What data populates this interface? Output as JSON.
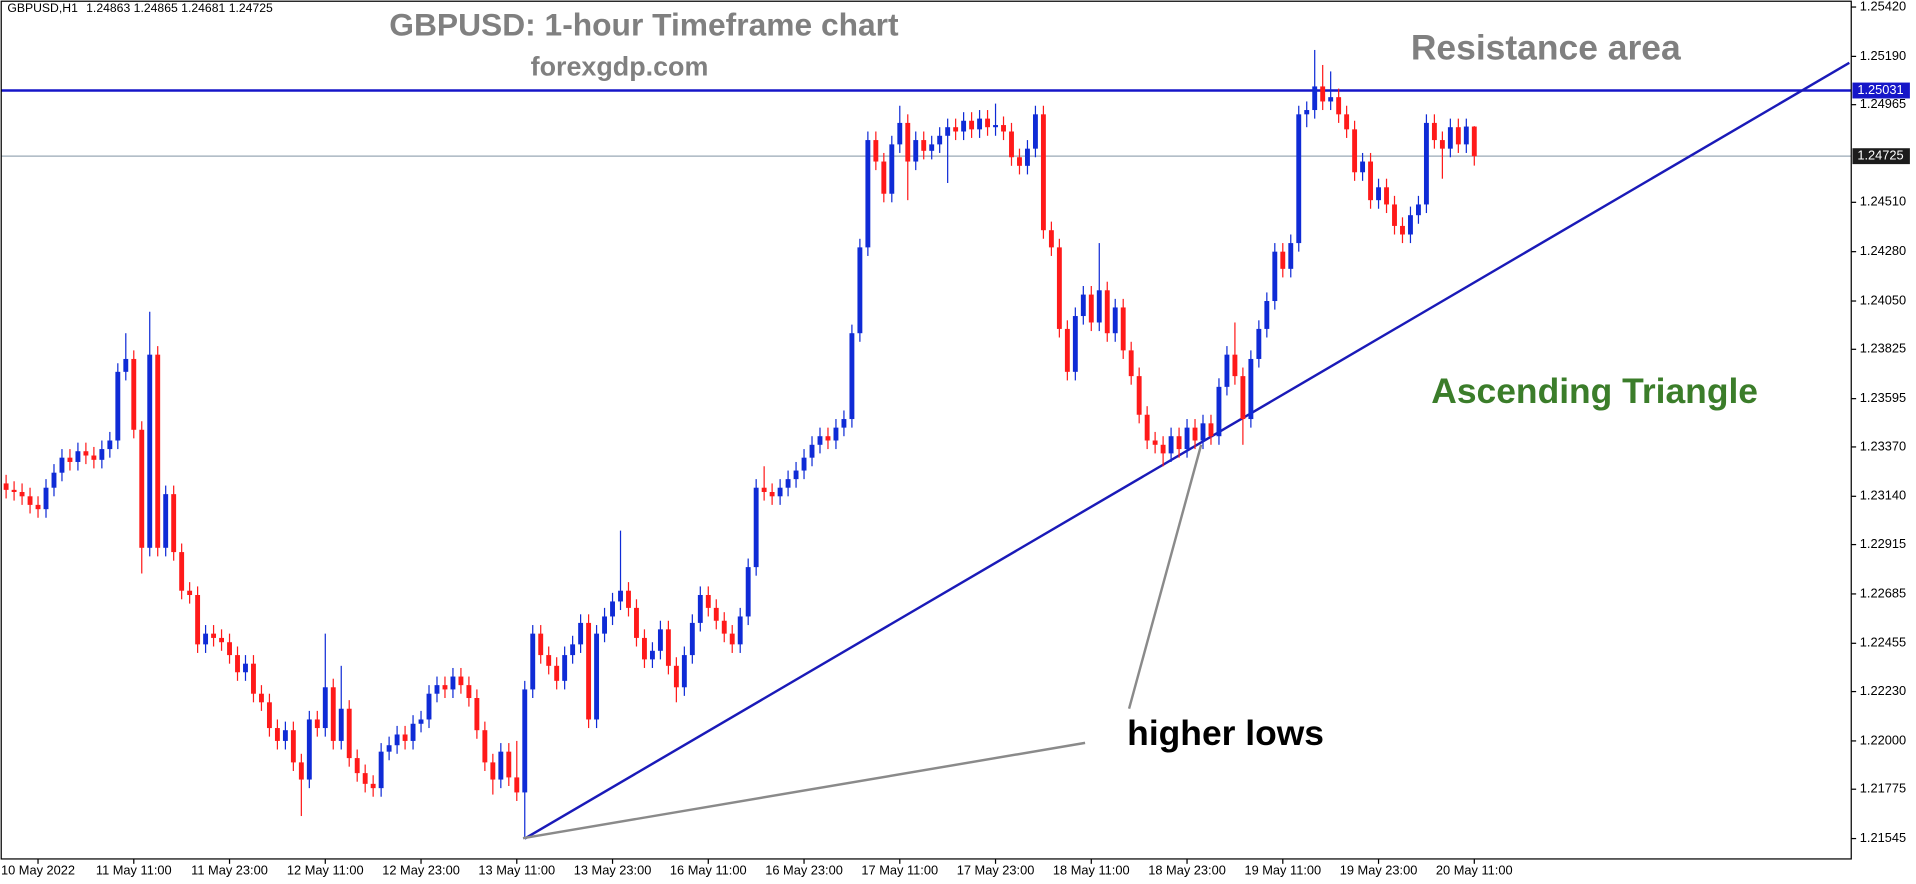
{
  "chart_data": {
    "type": "candlestick",
    "symbol": "GBPUSD,H1",
    "title": "GBPUSD: 1-hour Timeframe chart",
    "subtitle": "forexgdp.com",
    "annotations": [
      "Resistance area",
      "Ascending Triangle",
      "higher lows"
    ],
    "up_color": "#0f2bd6",
    "down_color": "#ff1a1a",
    "categories": [
      null,
      null,
      null,
      null,
      "10 May 2022",
      null,
      null,
      null,
      null,
      null,
      null,
      null,
      null,
      null,
      null,
      null,
      "11 May 11:00",
      null,
      null,
      null,
      null,
      null,
      null,
      null,
      null,
      null,
      null,
      null,
      "11 May 23:00",
      null,
      null,
      null,
      null,
      null,
      null,
      null,
      null,
      null,
      null,
      null,
      "12 May 11:00",
      null,
      null,
      null,
      null,
      null,
      null,
      null,
      null,
      null,
      null,
      null,
      "12 May 23:00",
      null,
      null,
      null,
      null,
      null,
      null,
      null,
      null,
      null,
      null,
      null,
      "13 May 11:00",
      null,
      null,
      null,
      null,
      null,
      null,
      null,
      null,
      null,
      null,
      null,
      "13 May 23:00",
      null,
      null,
      null,
      null,
      null,
      null,
      null,
      null,
      null,
      null,
      null,
      "16 May 11:00",
      null,
      null,
      null,
      null,
      null,
      null,
      null,
      null,
      null,
      null,
      null,
      "16 May 23:00",
      null,
      null,
      null,
      null,
      null,
      null,
      null,
      null,
      null,
      null,
      null,
      "17 May 11:00",
      null,
      null,
      null,
      null,
      null,
      null,
      null,
      null,
      null,
      null,
      null,
      "17 May 23:00",
      null,
      null,
      null,
      null,
      null,
      null,
      null,
      null,
      null,
      null,
      null,
      "18 May 11:00",
      null,
      null,
      null,
      null,
      null,
      null,
      null,
      null,
      null,
      null,
      null,
      "18 May 23:00",
      null,
      null,
      null,
      null,
      null,
      null,
      null,
      null,
      null,
      null,
      null,
      "19 May 11:00",
      null,
      null,
      null,
      null,
      null,
      null,
      null,
      null,
      null,
      null,
      null,
      "19 May 23:00",
      null,
      null,
      null,
      null,
      null,
      null,
      null,
      null,
      null,
      null,
      null,
      "20 May 11:00"
    ],
    "ohlc": [
      [
        1.232,
        1.2324,
        1.2313,
        1.2317
      ],
      [
        1.2317,
        1.2321,
        1.2312,
        1.2316
      ],
      [
        1.2316,
        1.232,
        1.231,
        1.2314
      ],
      [
        1.2314,
        1.2318,
        1.2306,
        1.231
      ],
      [
        1.231,
        1.2314,
        1.2304,
        1.2308
      ],
      [
        1.2308,
        1.2322,
        1.2304,
        1.2318
      ],
      [
        1.2318,
        1.2329,
        1.2314,
        1.2325
      ],
      [
        1.2325,
        1.2336,
        1.2321,
        1.2332
      ],
      [
        1.2332,
        1.2336,
        1.2326,
        1.233
      ],
      [
        1.233,
        1.2339,
        1.2326,
        1.2335
      ],
      [
        1.2335,
        1.2339,
        1.2329,
        1.2333
      ],
      [
        1.2333,
        1.2337,
        1.2327,
        1.2331
      ],
      [
        1.2331,
        1.234,
        1.2327,
        1.2336
      ],
      [
        1.2336,
        1.2344,
        1.2332,
        1.234
      ],
      [
        1.234,
        1.2376,
        1.2336,
        1.2372
      ],
      [
        1.2372,
        1.239,
        1.2368,
        1.2378
      ],
      [
        1.2378,
        1.2382,
        1.2341,
        1.2345
      ],
      [
        1.2345,
        1.2349,
        1.2278,
        1.229
      ],
      [
        1.229,
        1.24,
        1.2286,
        1.238
      ],
      [
        1.238,
        1.2384,
        1.2286,
        1.229
      ],
      [
        1.229,
        1.2319,
        1.2286,
        1.2315
      ],
      [
        1.2315,
        1.2319,
        1.2284,
        1.2288
      ],
      [
        1.2288,
        1.2292,
        1.2266,
        1.227
      ],
      [
        1.227,
        1.2274,
        1.2264,
        1.2268
      ],
      [
        1.2268,
        1.2272,
        1.2241,
        1.2245
      ],
      [
        1.2245,
        1.2254,
        1.2241,
        1.225
      ],
      [
        1.225,
        1.2254,
        1.2244,
        1.2248
      ],
      [
        1.2248,
        1.2252,
        1.2242,
        1.2246
      ],
      [
        1.2246,
        1.225,
        1.2236,
        1.224
      ],
      [
        1.224,
        1.2244,
        1.2228,
        1.2232
      ],
      [
        1.2232,
        1.224,
        1.2228,
        1.2236
      ],
      [
        1.2236,
        1.224,
        1.2218,
        1.2222
      ],
      [
        1.2222,
        1.2226,
        1.2214,
        1.2218
      ],
      [
        1.2218,
        1.2222,
        1.2202,
        1.2206
      ],
      [
        1.2206,
        1.221,
        1.2196,
        1.22
      ],
      [
        1.22,
        1.2209,
        1.2196,
        1.2205
      ],
      [
        1.2205,
        1.2209,
        1.2186,
        1.219
      ],
      [
        1.219,
        1.2194,
        1.2165,
        1.2182
      ],
      [
        1.2182,
        1.2214,
        1.2178,
        1.221
      ],
      [
        1.221,
        1.2214,
        1.2202,
        1.2206
      ],
      [
        1.2206,
        1.225,
        1.2202,
        1.2225
      ],
      [
        1.2225,
        1.2229,
        1.2196,
        1.22
      ],
      [
        1.22,
        1.2235,
        1.2196,
        1.2215
      ],
      [
        1.2215,
        1.2219,
        1.2188,
        1.2192
      ],
      [
        1.2192,
        1.2196,
        1.2181,
        1.2185
      ],
      [
        1.2185,
        1.2189,
        1.2176,
        1.218
      ],
      [
        1.218,
        1.2184,
        1.2174,
        1.2178
      ],
      [
        1.2178,
        1.2199,
        1.2174,
        1.2195
      ],
      [
        1.2195,
        1.2202,
        1.2191,
        1.2198
      ],
      [
        1.2198,
        1.2207,
        1.2194,
        1.2203
      ],
      [
        1.2203,
        1.2207,
        1.2196,
        1.22
      ],
      [
        1.22,
        1.2212,
        1.2196,
        1.2208
      ],
      [
        1.2208,
        1.2214,
        1.2204,
        1.221
      ],
      [
        1.221,
        1.2226,
        1.2206,
        1.2222
      ],
      [
        1.2222,
        1.223,
        1.2218,
        1.2226
      ],
      [
        1.2226,
        1.223,
        1.222,
        1.2224
      ],
      [
        1.2224,
        1.2234,
        1.222,
        1.223
      ],
      [
        1.223,
        1.2234,
        1.2222,
        1.2226
      ],
      [
        1.2226,
        1.223,
        1.2216,
        1.222
      ],
      [
        1.222,
        1.2224,
        1.2201,
        1.2205
      ],
      [
        1.2205,
        1.2209,
        1.2186,
        1.219
      ],
      [
        1.219,
        1.2194,
        1.2175,
        1.2182
      ],
      [
        1.2182,
        1.2199,
        1.2178,
        1.2195
      ],
      [
        1.2195,
        1.2199,
        1.2179,
        1.2183
      ],
      [
        1.2183,
        1.22,
        1.2172,
        1.2176
      ],
      [
        1.2176,
        1.2228,
        1.21545,
        1.2224
      ],
      [
        1.2224,
        1.2254,
        1.222,
        1.225
      ],
      [
        1.225,
        1.2254,
        1.2236,
        1.224
      ],
      [
        1.224,
        1.2244,
        1.2231,
        1.2235
      ],
      [
        1.2235,
        1.2239,
        1.2224,
        1.2228
      ],
      [
        1.2228,
        1.2244,
        1.2224,
        1.224
      ],
      [
        1.224,
        1.2249,
        1.2236,
        1.2245
      ],
      [
        1.2245,
        1.2259,
        1.2241,
        1.2255
      ],
      [
        1.2255,
        1.2259,
        1.2206,
        1.221
      ],
      [
        1.221,
        1.2254,
        1.2206,
        1.225
      ],
      [
        1.225,
        1.2262,
        1.2246,
        1.2258
      ],
      [
        1.2258,
        1.2269,
        1.2254,
        1.2265
      ],
      [
        1.2265,
        1.2298,
        1.2261,
        1.227
      ],
      [
        1.227,
        1.2274,
        1.2258,
        1.2262
      ],
      [
        1.2262,
        1.2266,
        1.2244,
        1.2248
      ],
      [
        1.2248,
        1.2252,
        1.2234,
        1.2238
      ],
      [
        1.2238,
        1.2246,
        1.2234,
        1.2242
      ],
      [
        1.2242,
        1.2256,
        1.2238,
        1.2252
      ],
      [
        1.2252,
        1.2256,
        1.2231,
        1.2235
      ],
      [
        1.2235,
        1.2239,
        1.2218,
        1.2225
      ],
      [
        1.2225,
        1.2244,
        1.2221,
        1.224
      ],
      [
        1.224,
        1.2259,
        1.2236,
        1.2255
      ],
      [
        1.2255,
        1.2272,
        1.2251,
        1.2268
      ],
      [
        1.2268,
        1.2272,
        1.2258,
        1.2262
      ],
      [
        1.2262,
        1.2266,
        1.2252,
        1.2256
      ],
      [
        1.2256,
        1.226,
        1.2246,
        1.225
      ],
      [
        1.225,
        1.2254,
        1.2241,
        1.2245
      ],
      [
        1.2245,
        1.2262,
        1.2241,
        1.2258
      ],
      [
        1.2258,
        1.2285,
        1.2254,
        1.2281
      ],
      [
        1.2281,
        1.2322,
        1.2277,
        1.2318
      ],
      [
        1.2318,
        1.2328,
        1.2312,
        1.2316
      ],
      [
        1.2316,
        1.232,
        1.231,
        1.2314
      ],
      [
        1.2314,
        1.2322,
        1.231,
        1.2318
      ],
      [
        1.2318,
        1.2326,
        1.2314,
        1.2322
      ],
      [
        1.2322,
        1.233,
        1.2318,
        1.2326
      ],
      [
        1.2326,
        1.2336,
        1.2322,
        1.2332
      ],
      [
        1.2332,
        1.2342,
        1.2328,
        1.2338
      ],
      [
        1.2338,
        1.2346,
        1.2334,
        1.2342
      ],
      [
        1.2342,
        1.2346,
        1.2336,
        1.234
      ],
      [
        1.234,
        1.235,
        1.2336,
        1.2346
      ],
      [
        1.2346,
        1.2354,
        1.2342,
        1.235
      ],
      [
        1.235,
        1.2394,
        1.2346,
        1.239
      ],
      [
        1.239,
        1.2434,
        1.2386,
        1.243
      ],
      [
        1.243,
        1.2484,
        1.2426,
        1.248
      ],
      [
        1.248,
        1.2484,
        1.2466,
        1.247
      ],
      [
        1.247,
        1.2474,
        1.2451,
        1.2455
      ],
      [
        1.2455,
        1.2482,
        1.2451,
        1.2478
      ],
      [
        1.2478,
        1.2496,
        1.2474,
        1.2488
      ],
      [
        1.2488,
        1.2492,
        1.2452,
        1.247
      ],
      [
        1.247,
        1.2484,
        1.2466,
        1.248
      ],
      [
        1.248,
        1.2484,
        1.2471,
        1.2475
      ],
      [
        1.2475,
        1.2482,
        1.2471,
        1.2478
      ],
      [
        1.2478,
        1.2486,
        1.2474,
        1.2482
      ],
      [
        1.2482,
        1.249,
        1.246,
        1.2486
      ],
      [
        1.2486,
        1.249,
        1.248,
        1.2484
      ],
      [
        1.2484,
        1.2493,
        1.248,
        1.2489
      ],
      [
        1.2489,
        1.2493,
        1.2481,
        1.2485
      ],
      [
        1.2485,
        1.2494,
        1.2481,
        1.249
      ],
      [
        1.249,
        1.2494,
        1.2482,
        1.2486
      ],
      [
        1.2486,
        1.2497,
        1.2482,
        1.2487
      ],
      [
        1.2487,
        1.2491,
        1.248,
        1.2484
      ],
      [
        1.2484,
        1.2488,
        1.2468,
        1.2472
      ],
      [
        1.2472,
        1.2476,
        1.2464,
        1.2468
      ],
      [
        1.2468,
        1.248,
        1.2464,
        1.2476
      ],
      [
        1.2476,
        1.2496,
        1.2472,
        1.2492
      ],
      [
        1.2492,
        1.2496,
        1.2434,
        1.2438
      ],
      [
        1.2438,
        1.2442,
        1.2426,
        1.243
      ],
      [
        1.243,
        1.2434,
        1.2388,
        1.2392
      ],
      [
        1.2392,
        1.2396,
        1.2368,
        1.2372
      ],
      [
        1.2372,
        1.2402,
        1.2368,
        1.2398
      ],
      [
        1.2398,
        1.2412,
        1.2394,
        1.2408
      ],
      [
        1.2408,
        1.2412,
        1.2391,
        1.2395
      ],
      [
        1.2395,
        1.2432,
        1.2391,
        1.241
      ],
      [
        1.241,
        1.2414,
        1.2386,
        1.239
      ],
      [
        1.239,
        1.2406,
        1.2386,
        1.2402
      ],
      [
        1.2402,
        1.2406,
        1.2378,
        1.2382
      ],
      [
        1.2382,
        1.2386,
        1.2366,
        1.237
      ],
      [
        1.237,
        1.2374,
        1.2348,
        1.2352
      ],
      [
        1.2352,
        1.2356,
        1.2336,
        1.234
      ],
      [
        1.234,
        1.2344,
        1.2334,
        1.2338
      ],
      [
        1.2338,
        1.2342,
        1.2328,
        1.2334
      ],
      [
        1.2334,
        1.2346,
        1.233,
        1.2342
      ],
      [
        1.2342,
        1.2346,
        1.2332,
        1.2336
      ],
      [
        1.2336,
        1.235,
        1.2332,
        1.2346
      ],
      [
        1.2346,
        1.235,
        1.2336,
        1.234
      ],
      [
        1.234,
        1.2352,
        1.2336,
        1.2348
      ],
      [
        1.2348,
        1.2352,
        1.2338,
        1.2342
      ],
      [
        1.2342,
        1.2369,
        1.2338,
        1.2365
      ],
      [
        1.2365,
        1.2384,
        1.2361,
        1.238
      ],
      [
        1.238,
        1.2395,
        1.2366,
        1.237
      ],
      [
        1.237,
        1.2374,
        1.2338,
        1.235
      ],
      [
        1.235,
        1.2382,
        1.2346,
        1.2378
      ],
      [
        1.2378,
        1.2396,
        1.2374,
        1.2392
      ],
      [
        1.2392,
        1.2409,
        1.2388,
        1.2405
      ],
      [
        1.2405,
        1.2432,
        1.2401,
        1.2428
      ],
      [
        1.2428,
        1.2432,
        1.2416,
        1.242
      ],
      [
        1.242,
        1.2436,
        1.2416,
        1.2432
      ],
      [
        1.2432,
        1.2496,
        1.2428,
        1.2492
      ],
      [
        1.2492,
        1.2498,
        1.2486,
        1.2494
      ],
      [
        1.2494,
        1.2522,
        1.249,
        1.2505
      ],
      [
        1.2505,
        1.2515,
        1.2494,
        1.2498
      ],
      [
        1.2498,
        1.2512,
        1.2494,
        1.25
      ],
      [
        1.25,
        1.2504,
        1.2488,
        1.2492
      ],
      [
        1.2492,
        1.2496,
        1.2481,
        1.2485
      ],
      [
        1.2485,
        1.2489,
        1.2461,
        1.2465
      ],
      [
        1.2465,
        1.2474,
        1.2461,
        1.247
      ],
      [
        1.247,
        1.2474,
        1.2448,
        1.2452
      ],
      [
        1.2452,
        1.2462,
        1.2448,
        1.2458
      ],
      [
        1.2458,
        1.2462,
        1.2446,
        1.245
      ],
      [
        1.245,
        1.2454,
        1.2436,
        1.244
      ],
      [
        1.244,
        1.2444,
        1.2432,
        1.2436
      ],
      [
        1.2436,
        1.2449,
        1.2432,
        1.2445
      ],
      [
        1.2445,
        1.2454,
        1.2441,
        1.245
      ],
      [
        1.245,
        1.2492,
        1.2446,
        1.2488
      ],
      [
        1.2488,
        1.2492,
        1.2476,
        1.248
      ],
      [
        1.248,
        1.2484,
        1.2462,
        1.2476
      ],
      [
        1.2476,
        1.249,
        1.2472,
        1.2486
      ],
      [
        1.2486,
        1.249,
        1.2474,
        1.2478
      ],
      [
        1.2478,
        1.249,
        1.2474,
        1.24863
      ],
      [
        1.24863,
        1.24865,
        1.24681,
        1.24725
      ]
    ],
    "ylim": [
      1.2145,
      1.2543
    ],
    "yticks": [
      {
        "value": 1.2542,
        "label": "1.25420"
      },
      {
        "value": 1.2519,
        "label": "1.25190"
      },
      1.24965,
      {
        "value": 1.2451,
        "label": "1.24510"
      },
      {
        "value": 1.2428,
        "label": "1.24280"
      },
      {
        "value": 1.2405,
        "label": "1.24050"
      },
      1.23825,
      1.23595,
      {
        "value": 1.2337,
        "label": "1.23370"
      },
      {
        "value": 1.2314,
        "label": "1.23140"
      },
      1.22915,
      1.22685,
      1.22455,
      {
        "value": 1.2223,
        "label": "1.22230"
      },
      {
        "value": 1.22,
        "label": "1.22000"
      },
      1.21775,
      1.21545
    ],
    "hlines": [
      {
        "value": 1.25031,
        "color": "#1616c8",
        "label_bg": "#1616c8"
      },
      {
        "value": 1.24725,
        "color": "#9aa8b6",
        "label_bg": "#1c1c1c"
      }
    ],
    "trendline": {
      "x": [
        65,
        231
      ],
      "y": [
        1.21545,
        1.2516
      ],
      "color": "#1a1ab8"
    }
  }
}
